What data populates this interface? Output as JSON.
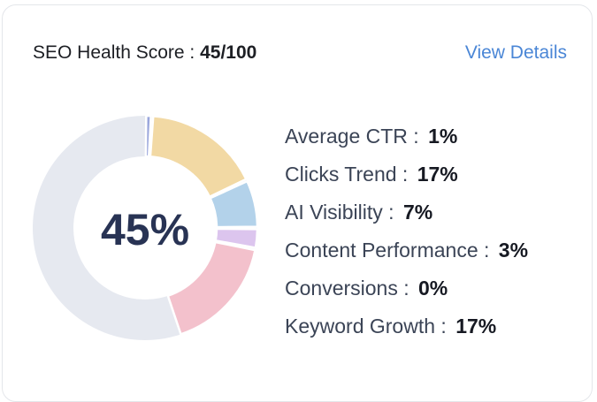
{
  "header": {
    "title": "SEO Health Score",
    "separator": " : ",
    "score": "45/100"
  },
  "view_details": "View Details",
  "donut": {
    "center_label": "45%",
    "score_value": 45,
    "track_color": "#e6e9f0",
    "segments": [
      {
        "name": "Average CTR",
        "value": 1,
        "color": "#9aa6dc"
      },
      {
        "name": "Clicks Trend",
        "value": 17,
        "color": "#f2d9a4"
      },
      {
        "name": "AI Visibility",
        "value": 7,
        "color": "#b3d2ea"
      },
      {
        "name": "Content Performance",
        "value": 3,
        "color": "#dcc5ee"
      },
      {
        "name": "Conversions",
        "value": 0,
        "color": "#c9c9c9"
      },
      {
        "name": "Keyword Growth",
        "value": 17,
        "color": "#f3c1cc"
      }
    ]
  },
  "metrics": [
    {
      "label": "Average CTR",
      "value": "1%"
    },
    {
      "label": "Clicks Trend",
      "value": "17%"
    },
    {
      "label": "AI Visibility",
      "value": "7%"
    },
    {
      "label": "Content Performance",
      "value": "3%"
    },
    {
      "label": "Conversions",
      "value": "0%"
    },
    {
      "label": "Keyword Growth",
      "value": "17%"
    }
  ]
}
